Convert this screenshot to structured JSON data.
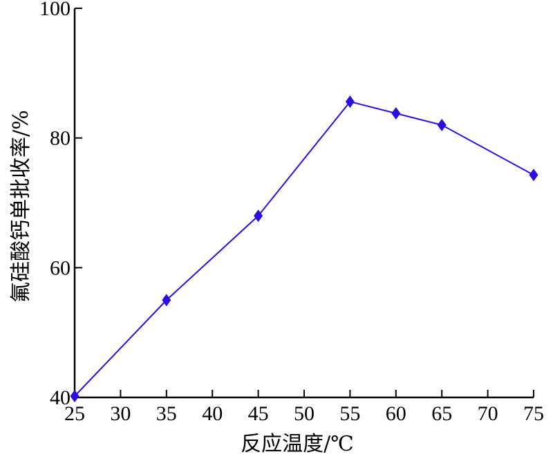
{
  "chart_data": {
    "type": "line",
    "xlabel": "反应温度/℃",
    "ylabel": "氟硅酸钙单批收率/%",
    "xlim": [
      25,
      75
    ],
    "ylim": [
      40,
      100
    ],
    "x_ticks": [
      25,
      30,
      35,
      40,
      45,
      50,
      55,
      60,
      65,
      70,
      75
    ],
    "y_ticks": [
      40,
      60,
      80,
      100
    ],
    "grid": false,
    "series": [
      {
        "color": "#2a10e0",
        "marker": "diamond",
        "x": [
          25,
          35,
          45,
          55,
          60,
          65,
          75
        ],
        "y": [
          40.2,
          55.0,
          68.0,
          85.6,
          83.8,
          82.0,
          74.3
        ]
      }
    ]
  }
}
